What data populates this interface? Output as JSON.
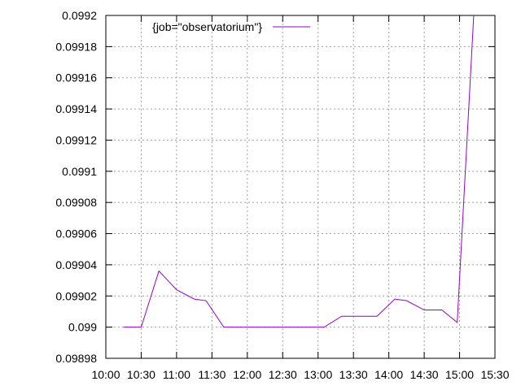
{
  "chart_data": {
    "type": "line",
    "title": "",
    "xlabel": "",
    "ylabel": "",
    "x_ticks": [
      "10:00",
      "10:30",
      "11:00",
      "11:30",
      "12:00",
      "12:30",
      "13:00",
      "13:30",
      "14:00",
      "14:30",
      "15:00",
      "15:30"
    ],
    "y_ticks": [
      "0.09898",
      "0.099",
      "0.09902",
      "0.09904",
      "0.09906",
      "0.09908",
      "0.0991",
      "0.09912",
      "0.09914",
      "0.09916",
      "0.09918",
      "0.0992"
    ],
    "xlim": [
      "10:00",
      "15:30"
    ],
    "ylim": [
      0.09898,
      0.0992
    ],
    "grid": true,
    "legend_position": "top-left",
    "series": [
      {
        "name": "{job=\"observatorium\"}",
        "color": "#9400d3",
        "points": [
          [
            "10:15",
            0.099
          ],
          [
            "10:30",
            0.099
          ],
          [
            "10:45",
            0.099036
          ],
          [
            "11:00",
            0.099024
          ],
          [
            "11:15",
            0.099018
          ],
          [
            "11:25",
            0.099017
          ],
          [
            "11:40",
            0.099
          ],
          [
            "13:05",
            0.099
          ],
          [
            "13:20",
            0.099007
          ],
          [
            "13:50",
            0.099007
          ],
          [
            "14:05",
            0.099018
          ],
          [
            "14:15",
            0.099017
          ],
          [
            "14:30",
            0.099011
          ],
          [
            "14:45",
            0.099011
          ],
          [
            "14:58",
            0.099003
          ],
          [
            "15:12",
            0.0992
          ]
        ]
      }
    ]
  }
}
